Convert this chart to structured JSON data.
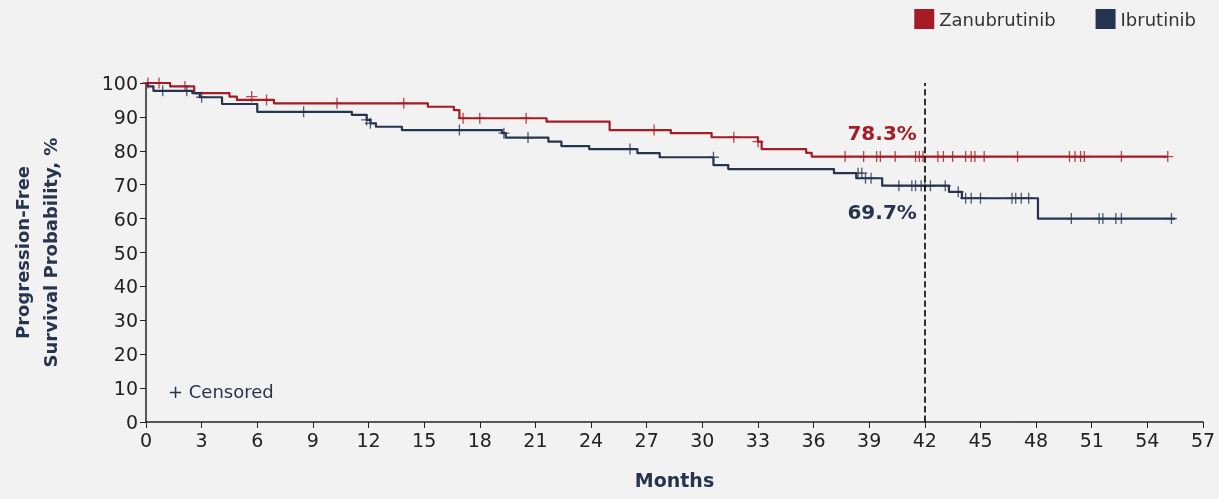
{
  "chart_data": {
    "type": "step",
    "xlabel": "Months",
    "ylabel": "Progression-Free\nSurvival Probability, %",
    "xlim": [
      0,
      57
    ],
    "xticks": [
      0,
      3,
      6,
      9,
      12,
      15,
      18,
      21,
      24,
      27,
      30,
      33,
      36,
      39,
      42,
      45,
      48,
      51,
      54,
      57
    ],
    "ylim": [
      0,
      100
    ],
    "yticks": [
      0,
      10,
      20,
      30,
      40,
      50,
      60,
      70,
      80,
      90,
      100
    ],
    "grid": false,
    "legend": "top right",
    "line_style": "solid",
    "series": [
      {
        "name": "Zanubrutinib",
        "color": "#a51c24",
        "type": "step",
        "marker": "none",
        "x": [
          0,
          1.3,
          2.6,
          4.5,
          4.9,
          6.9,
          15.2,
          16.6,
          16.9,
          21.6,
          25,
          28.3,
          30.5,
          33,
          33.2,
          35.6,
          35.9,
          55.1
        ],
        "values": [
          100,
          99,
          97,
          96,
          95,
          94,
          93,
          92,
          89.6,
          88.6,
          86.1,
          85.2,
          84,
          82.7,
          80.5,
          79.4,
          78.3,
          78.3
        ]
      },
      {
        "name": "Ibrutinib",
        "color": "#27344f",
        "type": "step",
        "marker": "none",
        "x": [
          0,
          0.1,
          0.4,
          2.5,
          2.9,
          4.1,
          6,
          11.1,
          11.9,
          12.1,
          12.4,
          13.8,
          19.2,
          19.4,
          21.7,
          22.4,
          23.9,
          26.5,
          27.7,
          30.6,
          31.4,
          37.1,
          38.3,
          39.7,
          43.3,
          44,
          48.1,
          55.5
        ],
        "values": [
          100,
          99,
          97.7,
          97,
          95.8,
          93.8,
          91.5,
          90.6,
          89.1,
          88.1,
          87.1,
          86.1,
          85.2,
          83.9,
          82.7,
          81.4,
          80.5,
          79.3,
          78.1,
          75.8,
          74.6,
          73.4,
          71.9,
          69.7,
          67.9,
          66,
          60,
          60
        ]
      },
      {
        "color": "#a51c24",
        "type": "scatter",
        "marker": "cross",
        "x": [
          0.1,
          0.7,
          2.1,
          5.7,
          6.5,
          10.3,
          13.9,
          17.1,
          18,
          20.5,
          27.4,
          31.7,
          33,
          37.7,
          38.7,
          39.4,
          39.6,
          40.4,
          41.5,
          41.7,
          41.9,
          42.7,
          43,
          43.5,
          44.2,
          44.5,
          44.7,
          45.2,
          47,
          49.8,
          50.1,
          50.4,
          50.6,
          52.6,
          55.1
        ],
        "values": [
          100,
          100,
          99,
          96,
          95,
          94,
          94,
          89.6,
          89.6,
          89.6,
          86.1,
          84,
          82.7,
          78.3,
          78.3,
          78.3,
          78.3,
          78.3,
          78.3,
          78.3,
          78.3,
          78.3,
          78.3,
          78.3,
          78.3,
          78.3,
          78.3,
          78.3,
          78.3,
          78.3,
          78.3,
          78.3,
          78.3,
          78.3,
          78.3
        ]
      },
      {
        "color": "#27344f",
        "type": "scatter",
        "marker": "cross",
        "x": [
          0.9,
          2.2,
          3,
          8.5,
          11.9,
          12.1,
          16.9,
          19.3,
          20.6,
          26.1,
          30.6,
          38.4,
          38.6,
          38.8,
          39.1,
          40.6,
          41.3,
          41.5,
          41.8,
          42,
          42.3,
          43.1,
          43.8,
          44.2,
          44.5,
          45,
          46.7,
          46.9,
          47.2,
          47.6,
          49.9,
          51.4,
          51.6,
          52.3,
          52.6,
          55.3
        ],
        "values": [
          97.7,
          97.7,
          95.8,
          91.5,
          89.1,
          88.1,
          86.1,
          85.2,
          83.9,
          80.5,
          78.1,
          73.4,
          73.4,
          71.9,
          71.9,
          69.7,
          69.7,
          69.7,
          69.7,
          69.7,
          69.7,
          69.7,
          67.9,
          66,
          66,
          66,
          66,
          66,
          66,
          66,
          60,
          60,
          60,
          60,
          60,
          60
        ]
      }
    ],
    "ref_lines": [
      {
        "axis": "x",
        "value": 42,
        "color": "#000000",
        "line_style": "dashed"
      }
    ],
    "annotations": [
      {
        "text": "78.3%",
        "x": 42,
        "y": 78.3
      },
      {
        "text": "69.7%",
        "x": 42,
        "y": 69.7
      },
      "+ Censored"
    ]
  }
}
